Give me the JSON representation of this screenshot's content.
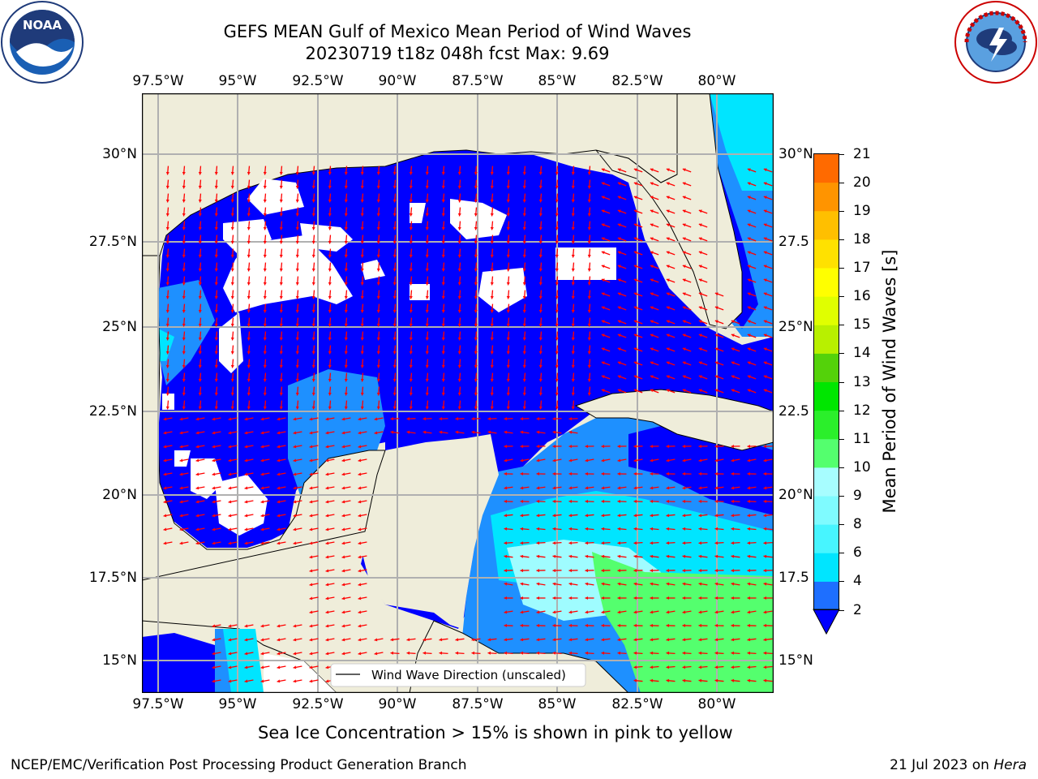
{
  "title_line1": "GEFS MEAN Gulf of Mexico Mean Period of Wind Waves",
  "title_line2": "20230719 t18z 048h fcst   Max: 9.69",
  "lon_labels": [
    "97.5°W",
    "95°W",
    "92.5°W",
    "90°W",
    "87.5°W",
    "85°W",
    "82.5°W",
    "80°W"
  ],
  "lat_labels_left": [
    "30°N",
    "27.5°N",
    "25°N",
    "22.5°N",
    "20°N",
    "17.5°N",
    "15°N"
  ],
  "lat_labels_right": [
    "30°N",
    "27.5",
    "25°N",
    "22.5",
    "20°N",
    "17.5",
    "15°N"
  ],
  "legend_label": "Wind Wave Direction (unscaled)",
  "colorbar": {
    "label": "Mean Period of Wind Waves [s]",
    "ticks": [
      "2",
      "4",
      "6",
      "8",
      "9",
      "10",
      "11",
      "12",
      "13",
      "14",
      "15",
      "16",
      "17",
      "18",
      "19",
      "20",
      "21"
    ],
    "colors": [
      "#1e6fff",
      "#00e5ff",
      "#47f5ff",
      "#7ffbff",
      "#a7fdff",
      "#54ff6e",
      "#2bef2b",
      "#00e600",
      "#54d20a",
      "#b8f000",
      "#e0ff00",
      "#ffff00",
      "#ffe100",
      "#ffbf00",
      "#ff9400",
      "#ff6a00",
      "#ff3a00",
      "#ff0000"
    ],
    "under_color": "#0000ff",
    "max_value": 9.69
  },
  "colors": {
    "land": "#efedda",
    "dark_blue": "#0000ff",
    "med_blue": "#1e90ff",
    "cyan": "#00e5ff",
    "light_cyan": "#9ffcff",
    "green": "#54ff6e",
    "arrow": "#ff0000"
  },
  "subcaption": "Sea Ice Concentration > 15% is shown in pink to yellow",
  "footer_left": "NCEP/EMC/Verification Post Processing Product Generation Branch",
  "footer_right_date": "21 Jul 2023 on ",
  "footer_right_host": "Hera",
  "logos": {
    "noaa": "NOAA",
    "noaa_ring": "NATIONAL OCEANIC AND ATMOSPHERIC ADMINISTRATION · U.S. DEPARTMENT OF COMMERCE",
    "nws_ring": "NATIONAL WEATHER SERVICE"
  }
}
